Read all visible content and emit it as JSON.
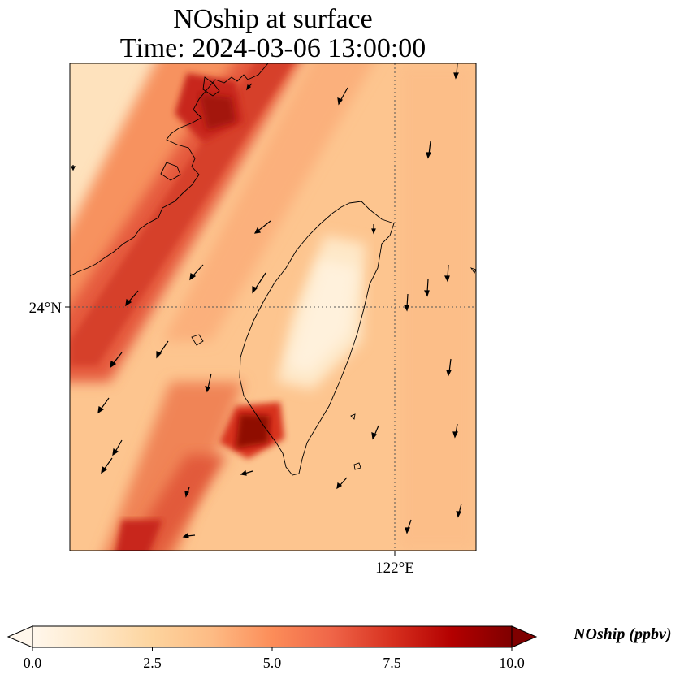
{
  "title": {
    "line1": "NOship at surface",
    "line2": "Time: 2024-03-06 13:00:00"
  },
  "axes": {
    "lat_label": "24°N",
    "lon_label": "122°E"
  },
  "colorbar": {
    "label": "NOship (ppbv)",
    "ticks": [
      "0.0",
      "2.5",
      "5.0",
      "7.5",
      "10.0"
    ],
    "range": [
      0,
      10
    ],
    "extend": "both",
    "colormap": "OrRd",
    "colors": [
      "#fff7ec",
      "#fee8c8",
      "#fdd49e",
      "#fdbb84",
      "#fc8d59",
      "#ef6548",
      "#d7301f",
      "#b30000",
      "#7f0000"
    ]
  },
  "map": {
    "gridlines": "dotted",
    "coastline_color": "#000000",
    "wind_vectors": true
  }
}
